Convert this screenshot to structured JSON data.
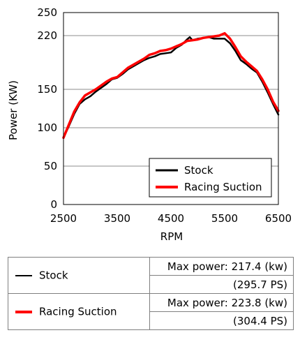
{
  "chart_data": {
    "type": "line",
    "xlabel": "RPM",
    "ylabel": "Power (KW)",
    "xlim": [
      2500,
      6500
    ],
    "ylim": [
      0,
      250
    ],
    "xticks": [
      "2500",
      "3500",
      "4500",
      "5500",
      "6500"
    ],
    "yticks": [
      "0",
      "50",
      "100",
      "150",
      "220",
      "250"
    ],
    "grid": "horizontal",
    "legend_position": "bottom-right",
    "series": [
      {
        "name": "Stock",
        "color": "#000000",
        "x": [
          2500,
          2600,
          2700,
          2800,
          2900,
          3000,
          3100,
          3200,
          3300,
          3400,
          3500,
          3600,
          3700,
          3800,
          3900,
          4000,
          4100,
          4200,
          4300,
          4400,
          4500,
          4600,
          4700,
          4800,
          4850,
          4900,
          5000,
          5100,
          5200,
          5300,
          5400,
          5500,
          5600,
          5700,
          5800,
          5900,
          6000,
          6100,
          6200,
          6300,
          6400,
          6500
        ],
        "y": [
          87,
          102,
          118,
          131,
          137,
          141,
          147,
          152,
          157,
          163,
          165,
          170,
          176,
          180,
          184,
          188,
          191,
          193,
          196,
          197,
          198,
          204,
          208,
          215,
          218,
          214,
          216,
          217,
          218,
          216,
          216,
          216,
          210,
          200,
          188,
          183,
          177,
          172,
          160,
          146,
          131,
          117
        ]
      },
      {
        "name": "Racing Suction",
        "color": "#ff0000",
        "x": [
          2500,
          2600,
          2700,
          2800,
          2900,
          3000,
          3100,
          3200,
          3300,
          3400,
          3500,
          3600,
          3700,
          3800,
          3900,
          4000,
          4100,
          4200,
          4300,
          4400,
          4500,
          4600,
          4700,
          4800,
          4900,
          5000,
          5100,
          5200,
          5300,
          5400,
          5500,
          5600,
          5700,
          5800,
          5900,
          6000,
          6100,
          6200,
          6300,
          6400,
          6500
        ],
        "y": [
          87,
          104,
          121,
          133,
          142,
          146,
          150,
          155,
          160,
          164,
          166,
          172,
          178,
          182,
          186,
          190,
          195,
          197,
          200,
          201,
          203,
          206,
          209,
          213,
          214,
          215,
          217,
          218,
          219,
          220,
          223,
          216,
          205,
          193,
          186,
          180,
          174,
          163,
          150,
          134,
          122
        ]
      }
    ]
  },
  "summary": {
    "rows": [
      {
        "name": "Stock",
        "color": "#000000",
        "max_power": "Max power: 217.4 (kw)",
        "ps": "(295.7 PS)"
      },
      {
        "name": "Racing Suction",
        "color": "#ff0000",
        "max_power": "Max power: 223.8 (kw)",
        "ps": "(304.4 PS)"
      }
    ]
  }
}
